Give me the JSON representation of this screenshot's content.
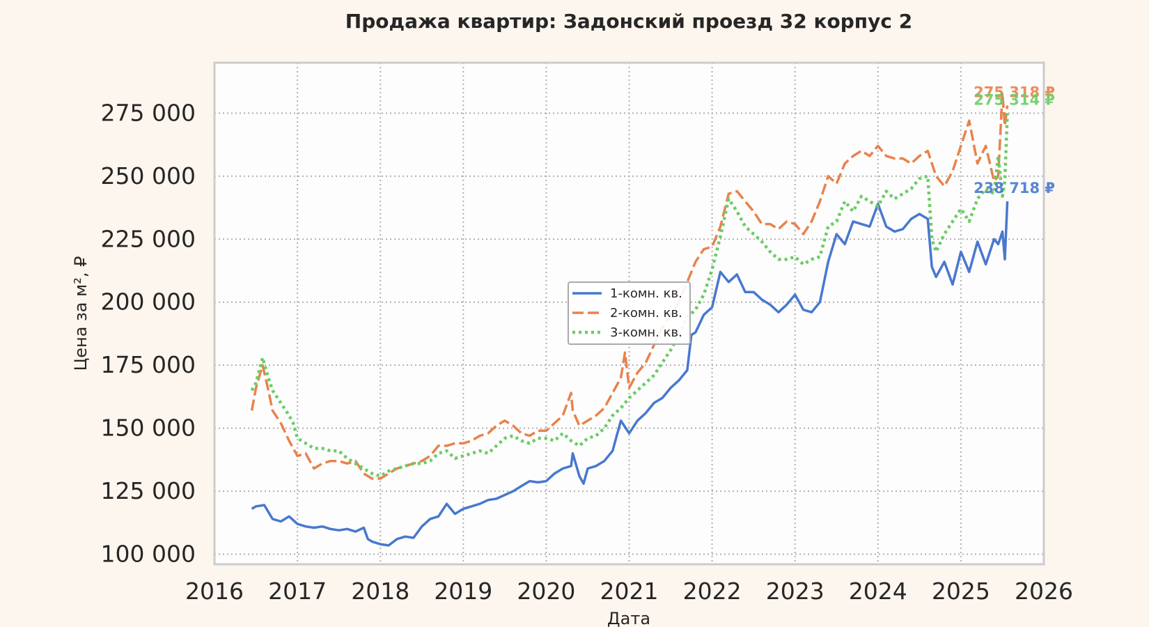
{
  "chart_data": {
    "type": "line",
    "title": "Продажа квартир: Задонский проезд 32 корпус 2",
    "xlabel": "Дата",
    "ylabel": "Цена за м², ₽",
    "xlim": [
      2016.0,
      2026.0
    ],
    "ylim": [
      96000,
      295000
    ],
    "grid": true,
    "legend_position": "center",
    "x_ticks": [
      2016,
      2017,
      2018,
      2019,
      2020,
      2021,
      2022,
      2023,
      2024,
      2025,
      2026
    ],
    "x_tick_labels": [
      "2016",
      "2017",
      "2018",
      "2019",
      "2020",
      "2021",
      "2022",
      "2023",
      "2024",
      "2025",
      "2026"
    ],
    "y_ticks": [
      100000,
      125000,
      150000,
      175000,
      200000,
      225000,
      250000,
      275000
    ],
    "y_tick_labels": [
      "100 000",
      "125 000",
      "150 000",
      "175 000",
      "200 000",
      "225 000",
      "250 000",
      "275 000"
    ],
    "colors": {
      "background": "#fdf6ee",
      "plot_background": "#fdfdfd",
      "frame": "#cccccc",
      "grid": "#b0b0b0"
    },
    "series": [
      {
        "name": "1-комн. кв.",
        "color": "#4878cf",
        "style": "solid",
        "end_label": "238 718 ₽",
        "x": [
          2016.45,
          2016.5,
          2016.6,
          2016.7,
          2016.8,
          2016.9,
          2017.0,
          2017.1,
          2017.2,
          2017.3,
          2017.4,
          2017.5,
          2017.6,
          2017.7,
          2017.8,
          2017.85,
          2017.9,
          2018.0,
          2018.1,
          2018.2,
          2018.3,
          2018.4,
          2018.5,
          2018.6,
          2018.7,
          2018.8,
          2018.9,
          2019.0,
          2019.1,
          2019.2,
          2019.3,
          2019.4,
          2019.5,
          2019.6,
          2019.7,
          2019.8,
          2019.9,
          2020.0,
          2020.1,
          2020.2,
          2020.3,
          2020.32,
          2020.4,
          2020.45,
          2020.5,
          2020.6,
          2020.7,
          2020.8,
          2020.9,
          2021.0,
          2021.1,
          2021.2,
          2021.3,
          2021.4,
          2021.5,
          2021.6,
          2021.7,
          2021.75,
          2021.8,
          2021.9,
          2022.0,
          2022.1,
          2022.2,
          2022.3,
          2022.4,
          2022.5,
          2022.6,
          2022.7,
          2022.8,
          2022.9,
          2023.0,
          2023.1,
          2023.2,
          2023.3,
          2023.4,
          2023.5,
          2023.6,
          2023.7,
          2023.8,
          2023.9,
          2024.0,
          2024.1,
          2024.2,
          2024.3,
          2024.4,
          2024.5,
          2024.6,
          2024.65,
          2024.7,
          2024.8,
          2024.9,
          2025.0,
          2025.1,
          2025.2,
          2025.3,
          2025.4,
          2025.45,
          2025.5,
          2025.53,
          2025.56
        ],
        "y": [
          118000,
          119000,
          119500,
          114000,
          113000,
          115000,
          112000,
          111000,
          110500,
          111000,
          110000,
          109500,
          110000,
          109000,
          110500,
          106000,
          105000,
          104000,
          103500,
          106000,
          107000,
          106500,
          111000,
          114000,
          115000,
          120000,
          116000,
          118000,
          119000,
          120000,
          121500,
          122000,
          123500,
          125000,
          127000,
          129000,
          128500,
          129000,
          132000,
          134000,
          135000,
          140000,
          131000,
          128000,
          134000,
          135000,
          137000,
          141000,
          153000,
          148000,
          153000,
          156000,
          160000,
          162000,
          166000,
          169000,
          173000,
          187000,
          188000,
          195000,
          198000,
          212000,
          208000,
          211000,
          204000,
          204000,
          201000,
          199000,
          196000,
          199000,
          203000,
          197000,
          196000,
          200000,
          216000,
          227000,
          223000,
          232000,
          231000,
          230000,
          239000,
          230000,
          228000,
          229000,
          233000,
          235000,
          233000,
          214000,
          210000,
          216000,
          207000,
          220000,
          212000,
          224000,
          215000,
          225000,
          223000,
          228000,
          217000,
          240000
        ]
      },
      {
        "name": "2-комн. кв.",
        "color": "#e8824d",
        "style": "dashed",
        "end_label": "275 318 ₽",
        "x": [
          2016.45,
          2016.5,
          2016.58,
          2016.65,
          2016.7,
          2016.8,
          2016.9,
          2016.95,
          2017.0,
          2017.1,
          2017.2,
          2017.3,
          2017.4,
          2017.5,
          2017.6,
          2017.7,
          2017.8,
          2017.9,
          2018.0,
          2018.1,
          2018.2,
          2018.3,
          2018.4,
          2018.5,
          2018.6,
          2018.7,
          2018.8,
          2018.9,
          2019.0,
          2019.1,
          2019.2,
          2019.3,
          2019.4,
          2019.5,
          2019.6,
          2019.7,
          2019.8,
          2019.9,
          2020.0,
          2020.1,
          2020.2,
          2020.3,
          2020.32,
          2020.4,
          2020.5,
          2020.6,
          2020.7,
          2020.8,
          2020.9,
          2020.95,
          2021.0,
          2021.1,
          2021.2,
          2021.3,
          2021.4,
          2021.5,
          2021.6,
          2021.7,
          2021.8,
          2021.9,
          2022.0,
          2022.1,
          2022.2,
          2022.3,
          2022.4,
          2022.5,
          2022.6,
          2022.7,
          2022.8,
          2022.9,
          2023.0,
          2023.1,
          2023.2,
          2023.3,
          2023.4,
          2023.5,
          2023.6,
          2023.7,
          2023.8,
          2023.9,
          2024.0,
          2024.1,
          2024.2,
          2024.3,
          2024.4,
          2024.5,
          2024.6,
          2024.7,
          2024.8,
          2024.9,
          2025.0,
          2025.1,
          2025.2,
          2025.3,
          2025.4,
          2025.45,
          2025.5,
          2025.53,
          2025.56
        ],
        "y": [
          157000,
          166000,
          175000,
          165000,
          157000,
          152000,
          145000,
          142000,
          139000,
          140000,
          134000,
          136000,
          137000,
          137000,
          136000,
          137000,
          132000,
          130000,
          130000,
          132000,
          134000,
          135000,
          136000,
          137000,
          139000,
          143000,
          143000,
          144000,
          144000,
          145000,
          147000,
          148000,
          151000,
          153000,
          151000,
          148000,
          147000,
          149000,
          149000,
          152000,
          155000,
          164000,
          157000,
          151000,
          153000,
          155000,
          158000,
          164000,
          170000,
          180000,
          166000,
          172000,
          176000,
          183000,
          190000,
          195000,
          200000,
          208000,
          216000,
          221000,
          222000,
          230000,
          243000,
          244000,
          240000,
          236000,
          231000,
          231000,
          229000,
          232000,
          231000,
          227000,
          232000,
          240000,
          250000,
          247000,
          255000,
          258000,
          260000,
          258000,
          262000,
          258000,
          257000,
          257000,
          255000,
          258000,
          260000,
          250000,
          246000,
          252000,
          262000,
          272000,
          255000,
          262000,
          248000,
          250000,
          283000,
          270000,
          278000
        ]
      },
      {
        "name": "3-комн. кв.",
        "color": "#6acc64",
        "style": "dotted",
        "end_label": "275 314 ₽",
        "x": [
          2016.45,
          2016.5,
          2016.58,
          2016.65,
          2016.7,
          2016.8,
          2016.9,
          2016.95,
          2017.0,
          2017.1,
          2017.2,
          2017.3,
          2017.4,
          2017.5,
          2017.6,
          2017.7,
          2017.8,
          2017.9,
          2018.0,
          2018.1,
          2018.2,
          2018.3,
          2018.4,
          2018.5,
          2018.6,
          2018.7,
          2018.8,
          2018.9,
          2019.0,
          2019.1,
          2019.2,
          2019.3,
          2019.4,
          2019.5,
          2019.6,
          2019.7,
          2019.8,
          2019.9,
          2020.0,
          2020.1,
          2020.2,
          2020.3,
          2020.4,
          2020.5,
          2020.6,
          2020.7,
          2020.8,
          2020.9,
          2021.0,
          2021.1,
          2021.2,
          2021.3,
          2021.4,
          2021.5,
          2021.6,
          2021.7,
          2021.8,
          2021.9,
          2022.0,
          2022.1,
          2022.2,
          2022.3,
          2022.4,
          2022.5,
          2022.6,
          2022.7,
          2022.8,
          2022.9,
          2023.0,
          2023.1,
          2023.2,
          2023.3,
          2023.4,
          2023.5,
          2023.6,
          2023.7,
          2023.8,
          2023.9,
          2024.0,
          2024.1,
          2024.2,
          2024.3,
          2024.4,
          2024.5,
          2024.6,
          2024.65,
          2024.7,
          2024.8,
          2024.9,
          2025.0,
          2025.1,
          2025.2,
          2025.3,
          2025.4,
          2025.45,
          2025.5,
          2025.53,
          2025.56
        ],
        "y": [
          165000,
          168000,
          178000,
          170000,
          165000,
          160000,
          155000,
          152000,
          146000,
          144000,
          142000,
          142000,
          141000,
          141000,
          138000,
          136000,
          134000,
          132000,
          131000,
          133000,
          134000,
          135000,
          136000,
          136000,
          137000,
          140000,
          141000,
          138000,
          139000,
          140000,
          141000,
          140000,
          143000,
          146000,
          147000,
          145000,
          144000,
          146000,
          146000,
          145000,
          148000,
          145000,
          143000,
          146000,
          147000,
          150000,
          155000,
          158000,
          162000,
          165000,
          168000,
          171000,
          176000,
          181000,
          187000,
          194000,
          197000,
          203000,
          213000,
          226000,
          241000,
          236000,
          230000,
          227000,
          224000,
          220000,
          217000,
          217000,
          218000,
          215000,
          217000,
          218000,
          230000,
          232000,
          240000,
          236000,
          242000,
          240000,
          238000,
          244000,
          241000,
          243000,
          245000,
          249000,
          250000,
          225000,
          220000,
          227000,
          232000,
          237000,
          232000,
          241000,
          245000,
          243000,
          258000,
          242000,
          248000,
          275000
        ]
      }
    ]
  }
}
